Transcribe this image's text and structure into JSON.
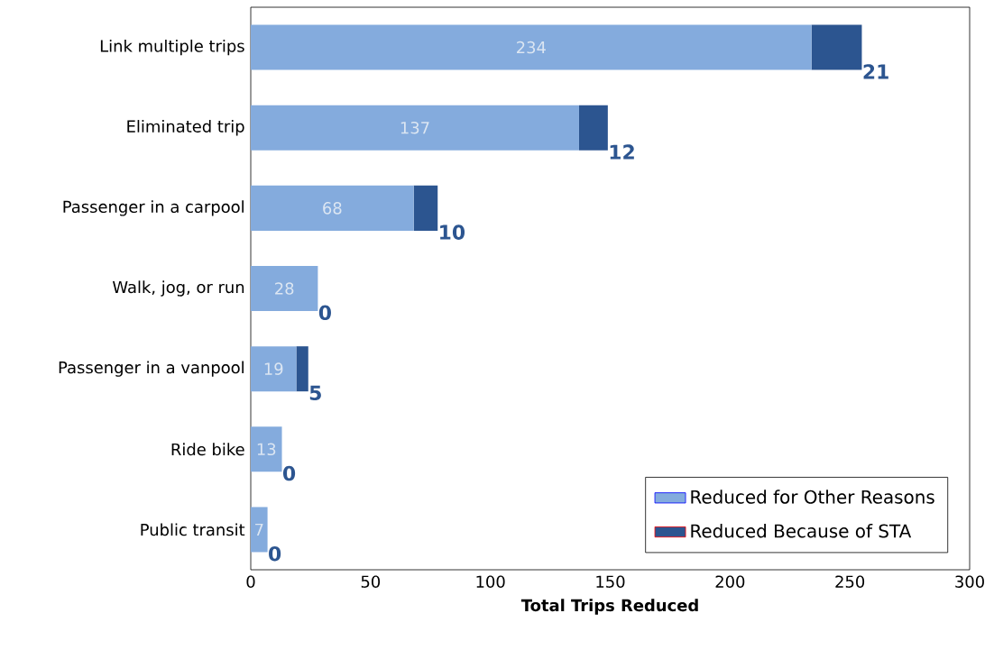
{
  "chart_data": {
    "type": "bar",
    "orientation": "horizontal",
    "stacked": true,
    "xlabel": "Total Trips Reduced",
    "categories": [
      "Link multiple trips",
      "Eliminated trip",
      "Passenger in a carpool",
      "Walk, jog, or run",
      "Passenger in a vanpool",
      "Ride bike",
      "Public transit"
    ],
    "series": [
      {
        "name": "Reduced for Other Reasons",
        "color": "#84abdd",
        "values": [
          234,
          137,
          68,
          28,
          19,
          13,
          7
        ]
      },
      {
        "name": "Reduced Because of STA",
        "color": "#2c5590",
        "values": [
          21,
          12,
          10,
          0,
          5,
          0,
          0
        ]
      }
    ],
    "xlim": [
      0,
      300
    ],
    "xticks": [
      0,
      50,
      100,
      150,
      200,
      250,
      300
    ],
    "data_labels": true,
    "legend": "bottom right"
  }
}
